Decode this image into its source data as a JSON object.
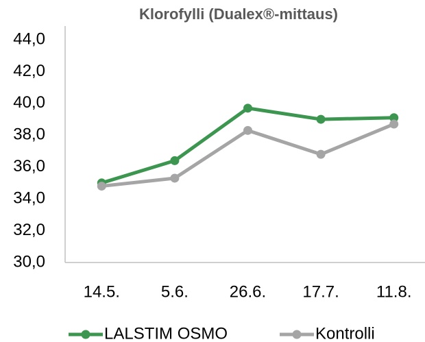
{
  "chart_data": {
    "type": "line",
    "title": "Klorofylli (Dualex®-mittaus)",
    "categories": [
      "14.5.",
      "5.6.",
      "26.6.",
      "17.7.",
      "11.8."
    ],
    "series": [
      {
        "name": "LALSTIM OSMO",
        "color": "#3d9650",
        "values": [
          35.0,
          36.4,
          39.7,
          39.0,
          39.1
        ]
      },
      {
        "name": "Kontrolli",
        "color": "#a5a5a5",
        "values": [
          34.8,
          35.3,
          38.3,
          36.8,
          38.7
        ]
      }
    ],
    "ylim": [
      30,
      44
    ],
    "yticks": [
      {
        "value": 30,
        "label": "30,0"
      },
      {
        "value": 32,
        "label": "32,0"
      },
      {
        "value": 34,
        "label": "34,0"
      },
      {
        "value": 36,
        "label": "36,0"
      },
      {
        "value": 38,
        "label": "38,0"
      },
      {
        "value": 40,
        "label": "40,0"
      },
      {
        "value": 42,
        "label": "42,0"
      },
      {
        "value": 44,
        "label": "44,0"
      }
    ],
    "grid": false,
    "legend": "bottom"
  }
}
